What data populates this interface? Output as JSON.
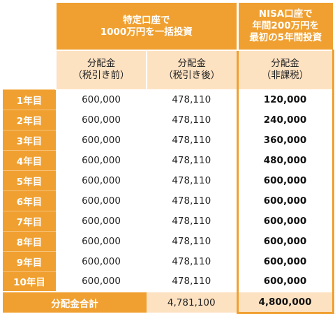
{
  "header": {
    "tokutei_title": [
      "特定口座で",
      "1000万円を一括投資"
    ],
    "nisa_title": [
      "NISA口座で",
      "年間200万円を",
      "最初の5年間投資"
    ],
    "col_pre_tax": [
      "分配金",
      "（税引き前）"
    ],
    "col_after_tax": [
      "分配金",
      "（税引き後）"
    ],
    "col_nisa": [
      "分配金",
      "（非課税）"
    ]
  },
  "rows": [
    {
      "year": "1年目",
      "pre_tax": "600,000",
      "after_tax": "478,110",
      "nisa": "120,000"
    },
    {
      "year": "2年目",
      "pre_tax": "600,000",
      "after_tax": "478,110",
      "nisa": "240,000"
    },
    {
      "year": "3年目",
      "pre_tax": "600,000",
      "after_tax": "478,110",
      "nisa": "360,000"
    },
    {
      "year": "4年目",
      "pre_tax": "600,000",
      "after_tax": "478,110",
      "nisa": "480,000"
    },
    {
      "year": "5年目",
      "pre_tax": "600,000",
      "after_tax": "478,110",
      "nisa": "600,000"
    },
    {
      "year": "6年目",
      "pre_tax": "600,000",
      "after_tax": "478,110",
      "nisa": "600,000"
    },
    {
      "year": "7年目",
      "pre_tax": "600,000",
      "after_tax": "478,110",
      "nisa": "600,000"
    },
    {
      "year": "8年目",
      "pre_tax": "600,000",
      "after_tax": "478,110",
      "nisa": "600,000"
    },
    {
      "year": "9年目",
      "pre_tax": "600,000",
      "after_tax": "478,110",
      "nisa": "600,000"
    },
    {
      "year": "10年目",
      "pre_tax": "600,000",
      "after_tax": "478,110",
      "nisa": "600,000"
    }
  ],
  "total": {
    "label": "分配金合計",
    "after_tax": "4,781,100",
    "nisa": "4,800,000"
  },
  "colors": {
    "accent_orange": "#f0a030",
    "light_orange": "#fde2c2"
  }
}
